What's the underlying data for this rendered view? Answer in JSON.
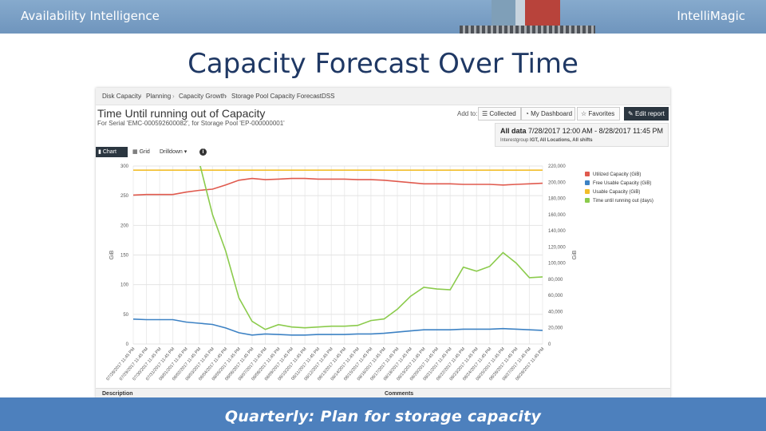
{
  "header": {
    "left_brand": "Availability Intelligence",
    "right_brand": "IntelliMagic"
  },
  "slide_title": "Capacity Forecast Over Time",
  "breadcrumb": [
    "Disk Capacity",
    "Planning",
    "Capacity Growth",
    "Storage Pool Capacity Forecast",
    "DSS"
  ],
  "report": {
    "title": "Time Until running out of Capacity",
    "subtitle": "For Serial 'EMC-000592600082', for Storage Pool 'EP-000000001'",
    "add_to_label": "Add to:",
    "buttons": {
      "collected": "Collected",
      "dashboard": "My Dashboard",
      "favorites": "Favorites",
      "edit": "Edit report"
    },
    "date_label": "All data",
    "date_range": "7/28/2017 12:00 AM - 8/28/2017 11:45 PM",
    "interest_label": "Interestgroup",
    "interest_value": "IGT, All Locations, All shifts"
  },
  "toolbar": {
    "chart": "Chart",
    "grid": "Grid",
    "drilldown": "Drilldown",
    "info": "i"
  },
  "icons": {
    "chart": "bar-chart-icon",
    "grid": "grid-icon",
    "collected": "list-icon",
    "dashboard": "dashboard-icon",
    "favorites": "star-icon",
    "edit": "edit-icon",
    "info": "info-icon",
    "dropdown": "caret-down-icon"
  },
  "chart_data": {
    "type": "line",
    "ylabel": "GiB",
    "y2label": "GiB",
    "ylim": [
      0,
      300
    ],
    "y2lim": [
      0,
      220000
    ],
    "yticks": [
      0,
      50,
      100,
      150,
      200,
      250,
      300
    ],
    "y2ticks": [
      "0",
      "20,000",
      "40,000",
      "60,000",
      "80,000",
      "100,000",
      "120,000",
      "140,000",
      "160,000",
      "180,000",
      "200,000",
      "220,000"
    ],
    "y2tick_values": [
      0,
      20000,
      40000,
      60000,
      80000,
      100000,
      120000,
      140000,
      160000,
      180000,
      200000,
      220000
    ],
    "x": [
      "07/28/2017 11:45 PM",
      "07/29/2017 11:45 PM",
      "07/30/2017 11:45 PM",
      "07/31/2017 11:45 PM",
      "08/01/2017 11:45 PM",
      "08/02/2017 11:45 PM",
      "08/03/2017 11:45 PM",
      "08/04/2017 11:45 PM",
      "08/05/2017 11:45 PM",
      "08/06/2017 11:45 PM",
      "08/07/2017 11:45 PM",
      "08/08/2017 11:45 PM",
      "08/09/2017 11:45 PM",
      "08/10/2017 11:45 PM",
      "08/11/2017 11:45 PM",
      "08/12/2017 11:45 PM",
      "08/13/2017 11:45 PM",
      "08/14/2017 11:45 PM",
      "08/15/2017 11:45 PM",
      "08/16/2017 11:45 PM",
      "08/17/2017 11:45 PM",
      "08/18/2017 11:45 PM",
      "08/19/2017 11:45 PM",
      "08/20/2017 11:45 PM",
      "08/21/2017 11:45 PM",
      "08/22/2017 11:45 PM",
      "08/23/2017 11:45 PM",
      "08/24/2017 11:45 PM",
      "08/25/2017 11:45 PM",
      "08/26/2017 11:45 PM",
      "08/27/2017 11:45 PM",
      "08/28/2017 11:45 PM"
    ],
    "legend_position": "right",
    "grid": true,
    "series": [
      {
        "name": "Utilized Capacity (GiB)",
        "color": "#e05a4e",
        "axis": "left",
        "values": [
          251,
          252,
          252,
          252,
          256,
          259,
          261,
          268,
          276,
          279,
          277,
          278,
          279,
          279,
          278,
          278,
          278,
          277,
          277,
          276,
          274,
          272,
          270,
          270,
          270,
          269,
          269,
          269,
          268,
          269,
          270,
          271
        ]
      },
      {
        "name": "Free Usable Capacity (GiB)",
        "color": "#3d82c4",
        "axis": "left",
        "values": [
          42,
          41,
          41,
          41,
          37,
          35,
          33,
          27,
          19,
          15,
          17,
          16,
          15,
          15,
          16,
          16,
          16,
          17,
          17,
          18,
          20,
          22,
          24,
          24,
          24,
          25,
          25,
          25,
          26,
          25,
          24,
          23
        ]
      },
      {
        "name": "Usable Capacity (GiB)",
        "color": "#f2bd2a",
        "axis": "left",
        "values": [
          293,
          293,
          293,
          293,
          293,
          293,
          293,
          293,
          293,
          293,
          293,
          293,
          293,
          293,
          293,
          293,
          293,
          293,
          293,
          293,
          293,
          293,
          293,
          293,
          293,
          293,
          293,
          293,
          293,
          293,
          293,
          293
        ]
      },
      {
        "name": "Time until running out (days)",
        "color": "#8bcb4c",
        "axis": "right",
        "values": [
          null,
          null,
          null,
          null,
          225000,
          225000,
          160000,
          115000,
          57000,
          28000,
          18000,
          24000,
          21000,
          20000,
          21000,
          22000,
          22000,
          23000,
          29000,
          31000,
          43000,
          59000,
          70000,
          68000,
          67000,
          95000,
          90000,
          96000,
          113000,
          100000,
          82000,
          83000
        ]
      }
    ]
  },
  "comments": {
    "description": "Description",
    "comments": "Comments"
  },
  "footer": {
    "text": "Quarterly:  Plan for storage capacity"
  }
}
